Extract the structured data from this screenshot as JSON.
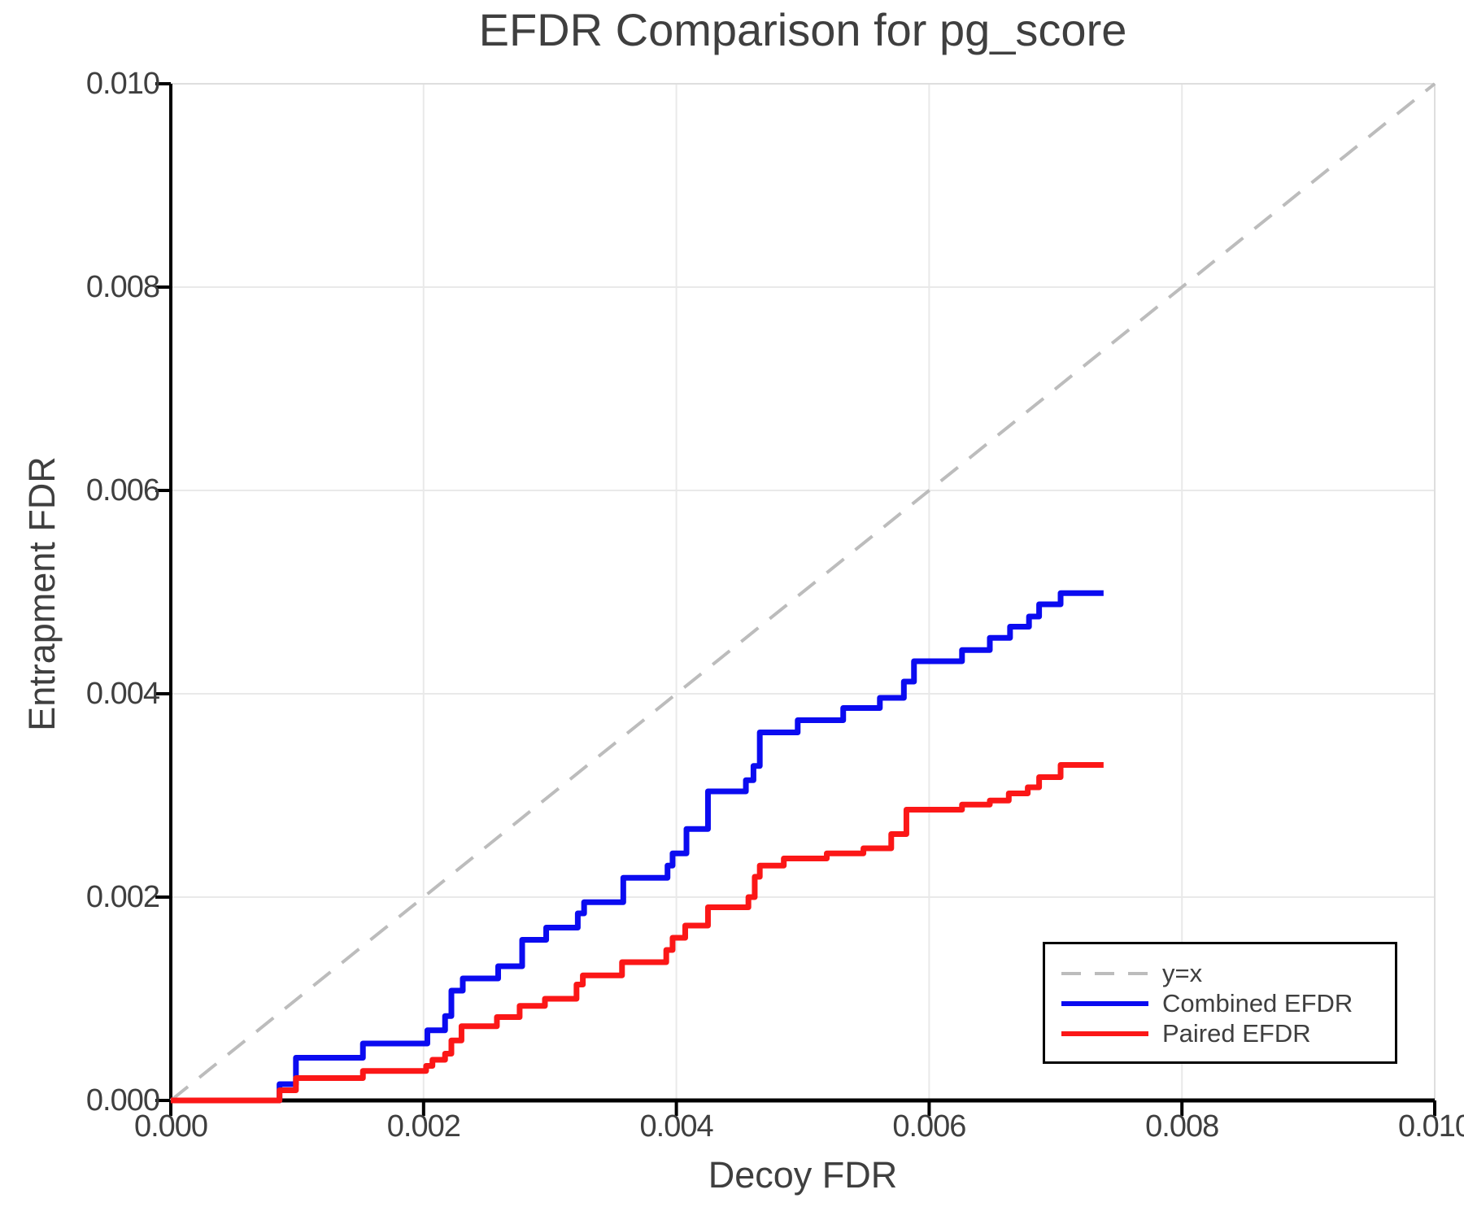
{
  "title": "EFDR Comparison for pg_score",
  "chart_data": {
    "type": "line",
    "title": "EFDR Comparison for pg_score",
    "xlabel": "Decoy FDR",
    "ylabel": "Entrapment FDR",
    "xlim": [
      0.0,
      0.01
    ],
    "ylim": [
      0.0,
      0.01
    ],
    "x_ticks": [
      0.0,
      0.002,
      0.004,
      0.006,
      0.008,
      0.01
    ],
    "x_tick_labels": [
      "0.000",
      "0.002",
      "0.004",
      "0.006",
      "0.008",
      "0.010"
    ],
    "y_ticks": [
      0.0,
      0.002,
      0.004,
      0.006,
      0.008,
      0.01
    ],
    "y_tick_labels": [
      "0.000",
      "0.002",
      "0.004",
      "0.006",
      "0.008",
      "0.010"
    ],
    "grid": true,
    "legend_position": "lower right",
    "series": [
      {
        "name": "y=x",
        "kind": "reference-line",
        "line_style": "dashed",
        "color": "#bcbcbc",
        "line_width": 4,
        "step": false,
        "points": [
          [
            0.0,
            0.0
          ],
          [
            0.01,
            0.01
          ]
        ]
      },
      {
        "name": "Combined EFDR",
        "kind": "step-line",
        "line_style": "solid",
        "color": "#0b0bf0",
        "line_width": 7,
        "step": true,
        "points": [
          [
            0.0,
            0.0
          ],
          [
            0.00086,
            0.00016
          ],
          [
            0.00099,
            0.00042
          ],
          [
            0.00152,
            0.00056
          ],
          [
            0.00203,
            0.00069
          ],
          [
            0.00217,
            0.00083
          ],
          [
            0.00222,
            0.00108
          ],
          [
            0.00231,
            0.0012
          ],
          [
            0.00259,
            0.00132
          ],
          [
            0.00278,
            0.00158
          ],
          [
            0.00297,
            0.0017
          ],
          [
            0.00322,
            0.00184
          ],
          [
            0.00327,
            0.00195
          ],
          [
            0.00358,
            0.00219
          ],
          [
            0.00393,
            0.00231
          ],
          [
            0.00397,
            0.00243
          ],
          [
            0.00408,
            0.00267
          ],
          [
            0.00425,
            0.00304
          ],
          [
            0.00455,
            0.00315
          ],
          [
            0.00461,
            0.00329
          ],
          [
            0.00466,
            0.00362
          ],
          [
            0.00496,
            0.00374
          ],
          [
            0.00532,
            0.00386
          ],
          [
            0.00561,
            0.00396
          ],
          [
            0.0058,
            0.00412
          ],
          [
            0.00588,
            0.00432
          ],
          [
            0.00626,
            0.00443
          ],
          [
            0.00648,
            0.00455
          ],
          [
            0.00664,
            0.00466
          ],
          [
            0.00679,
            0.00476
          ],
          [
            0.00687,
            0.00488
          ],
          [
            0.00704,
            0.00499
          ],
          [
            0.00738,
            0.00499
          ]
        ]
      },
      {
        "name": "Paired EFDR",
        "kind": "step-line",
        "line_style": "solid",
        "color": "#fb1717",
        "line_width": 7,
        "step": true,
        "points": [
          [
            0.0,
            0.0
          ],
          [
            0.00086,
            0.0001
          ],
          [
            0.00099,
            0.00022
          ],
          [
            0.00152,
            0.00029
          ],
          [
            0.00202,
            0.00034
          ],
          [
            0.00207,
            0.0004
          ],
          [
            0.00217,
            0.00046
          ],
          [
            0.00222,
            0.00059
          ],
          [
            0.0023,
            0.00073
          ],
          [
            0.00258,
            0.00082
          ],
          [
            0.00276,
            0.00093
          ],
          [
            0.00296,
            0.001
          ],
          [
            0.00321,
            0.00114
          ],
          [
            0.00326,
            0.00123
          ],
          [
            0.00357,
            0.00136
          ],
          [
            0.00392,
            0.00148
          ],
          [
            0.00397,
            0.0016
          ],
          [
            0.00407,
            0.00172
          ],
          [
            0.00425,
            0.0019
          ],
          [
            0.00457,
            0.002
          ],
          [
            0.00462,
            0.0022
          ],
          [
            0.00466,
            0.00231
          ],
          [
            0.00485,
            0.00238
          ],
          [
            0.00519,
            0.00243
          ],
          [
            0.00548,
            0.00248
          ],
          [
            0.0057,
            0.00262
          ],
          [
            0.00582,
            0.00286
          ],
          [
            0.00626,
            0.00291
          ],
          [
            0.00648,
            0.00295
          ],
          [
            0.00663,
            0.00302
          ],
          [
            0.00678,
            0.00308
          ],
          [
            0.00687,
            0.00318
          ],
          [
            0.00704,
            0.0033
          ],
          [
            0.00738,
            0.0033
          ]
        ]
      }
    ]
  },
  "legend": {
    "entries": [
      "y=x",
      "Combined EFDR",
      "Paired EFDR"
    ]
  },
  "style": {
    "background": "#ffffff",
    "text_color": "#3f3f3f",
    "grid_color": "#e9e9e9",
    "spine_color": "#000000",
    "light_spine_color": "#dedede",
    "tick_color": "#000000",
    "legend_border_color": "#000000"
  }
}
